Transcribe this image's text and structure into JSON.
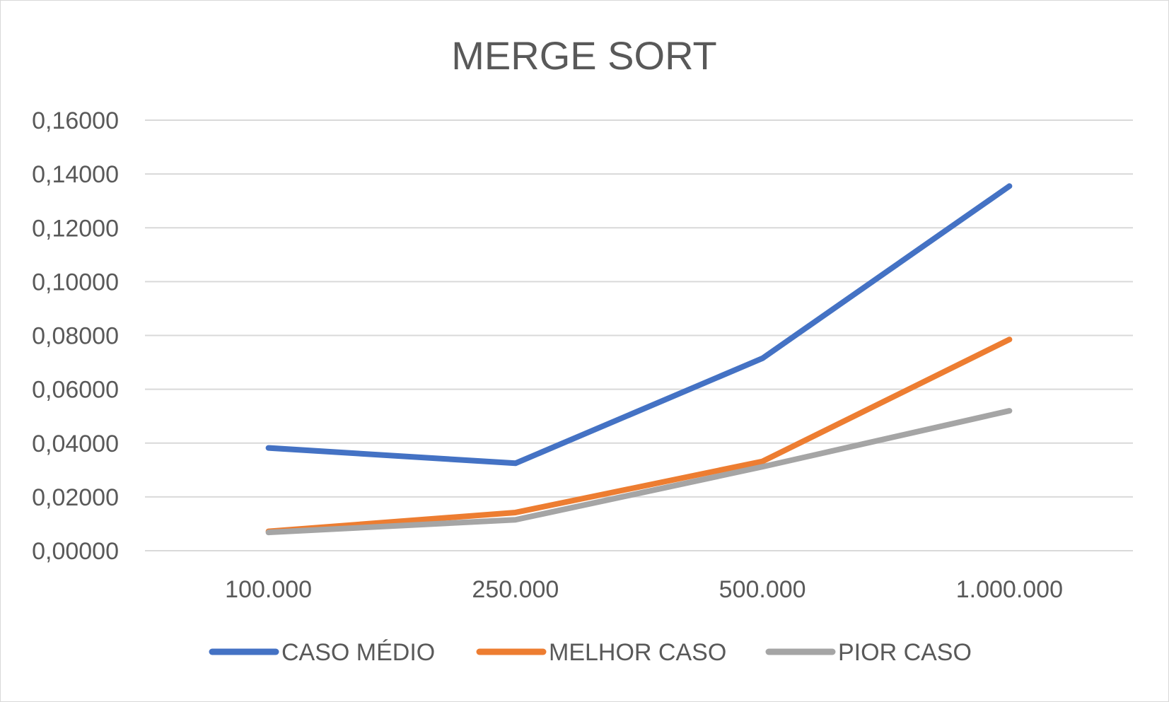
{
  "chart_data": {
    "type": "line",
    "title": "MERGE SORT",
    "categories": [
      "100.000",
      "250.000",
      "500.000",
      "1.000.000"
    ],
    "y_ticks": [
      "0,00000",
      "0,02000",
      "0,04000",
      "0,06000",
      "0,08000",
      "0,10000",
      "0,12000",
      "0,14000",
      "0,16000"
    ],
    "ylim": [
      0,
      0.16
    ],
    "grid": true,
    "legend_position": "bottom",
    "series": [
      {
        "name": "CASO MÉDIO",
        "color": "#4472C4",
        "values": [
          0.0382,
          0.0325,
          0.0715,
          0.1355
        ]
      },
      {
        "name": "MELHOR CASO",
        "color": "#ED7D31",
        "values": [
          0.0072,
          0.0142,
          0.0332,
          0.0785
        ]
      },
      {
        "name": "PIOR CASO",
        "color": "#A5A5A5",
        "values": [
          0.0068,
          0.0115,
          0.0312,
          0.052
        ]
      }
    ]
  }
}
